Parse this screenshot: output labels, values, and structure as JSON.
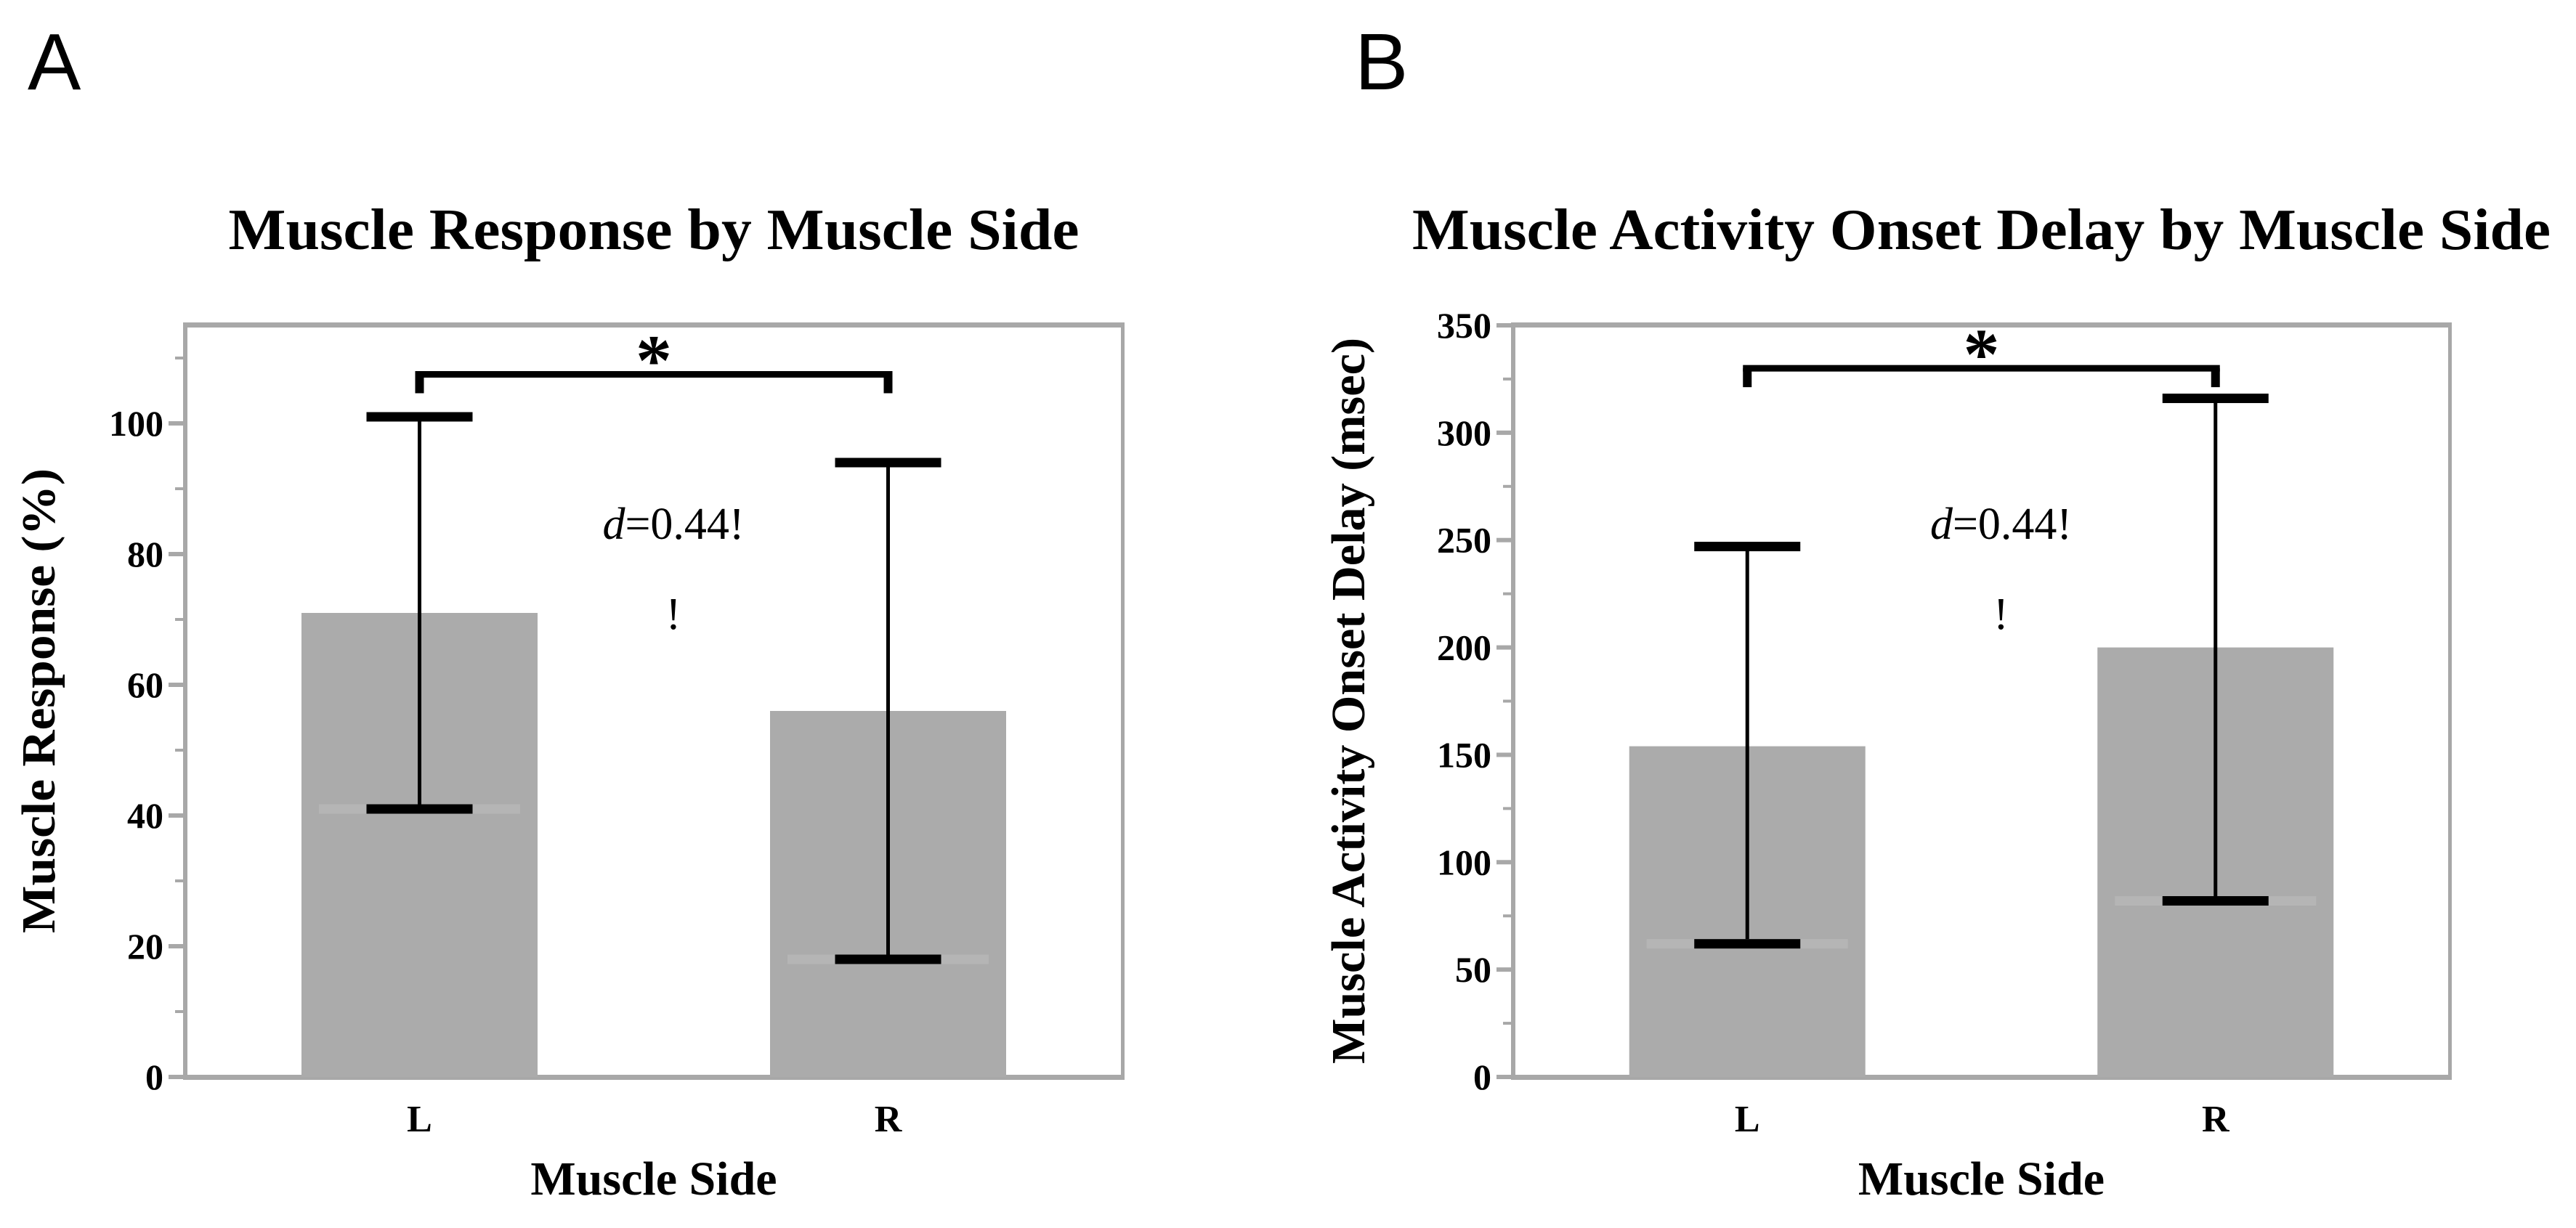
{
  "figure": {
    "background": "#ffffff",
    "panel_count": 2
  },
  "colors": {
    "bar_fill": "#ababab",
    "axis_gray": "#a8a8a8",
    "error_black": "#000000",
    "cap_backing_stripe": "#b5b5b5",
    "text": "#000000",
    "plot_background": "#ffffff"
  },
  "chart_data": [
    {
      "type": "bar",
      "panel_letter": "A",
      "title": "Muscle Response by Muscle Side",
      "xlabel": "Muscle Side",
      "ylabel": "Muscle Response (%)",
      "categories": [
        "L",
        "R"
      ],
      "values": [
        71,
        56
      ],
      "error_upper": [
        101,
        94
      ],
      "error_lower": [
        41,
        18
      ],
      "ylim": [
        0,
        115
      ],
      "yticks": [
        0,
        20,
        40,
        60,
        80,
        100
      ],
      "yticks_minor": [
        10,
        30,
        50,
        70,
        90,
        110
      ],
      "grid": false,
      "legend": "none",
      "significance": {
        "marker": "*",
        "bracket_y": 107.5,
        "connects": [
          "L",
          "R"
        ]
      },
      "annotation": {
        "line1": "d=0.44!",
        "line2": "!",
        "italic_part": "d"
      }
    },
    {
      "type": "bar",
      "panel_letter": "B",
      "title": "Muscle Activity Onset Delay by Muscle Side",
      "xlabel": "Muscle Side",
      "ylabel": "Muscle Activity Onset Delay (msec)",
      "categories": [
        "L",
        "R"
      ],
      "values": [
        154,
        200
      ],
      "error_upper": [
        247,
        316
      ],
      "error_lower": [
        62,
        82
      ],
      "ylim": [
        0,
        350
      ],
      "yticks": [
        0,
        50,
        100,
        150,
        200,
        250,
        300,
        350
      ],
      "yticks_minor": [
        25,
        75,
        125,
        175,
        225,
        275,
        325
      ],
      "grid": false,
      "legend": "none",
      "significance": {
        "marker": "*",
        "bracket_y": 330,
        "connects": [
          "L",
          "R"
        ]
      },
      "annotation": {
        "line1": "d=0.44!",
        "line2": "!",
        "italic_part": "d"
      }
    }
  ]
}
